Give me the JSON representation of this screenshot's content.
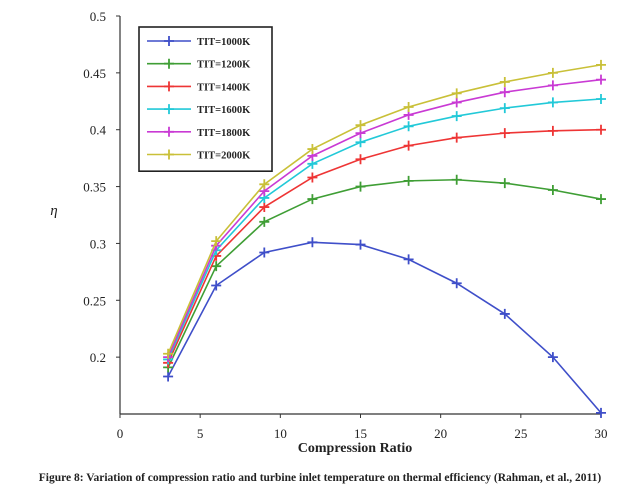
{
  "chart_data": {
    "type": "line",
    "title": "",
    "xlabel": "Compression Ratio",
    "ylabel": "η",
    "xlim": [
      0,
      30
    ],
    "ylim": [
      0.15,
      0.5
    ],
    "xticks": [
      0,
      5,
      10,
      15,
      20,
      25,
      30
    ],
    "yticks": [
      0.2,
      0.25,
      0.3,
      0.35,
      0.4,
      0.45,
      0.5
    ],
    "ytick_labels": [
      "0.2",
      "0.25",
      "0.3",
      "0.35",
      "0.4",
      "0.45",
      "0.5"
    ],
    "grid": false,
    "legend_position": "top-left",
    "x": [
      3,
      6,
      9,
      12,
      15,
      18,
      21,
      24,
      27,
      30
    ],
    "series": [
      {
        "name": "TIT=1000K",
        "color": "#3f4fc9",
        "values": [
          0.183,
          0.263,
          0.292,
          0.301,
          0.299,
          0.286,
          0.265,
          0.238,
          0.2,
          0.151
        ]
      },
      {
        "name": "TIT=1200K",
        "color": "#3f9e35",
        "values": [
          0.191,
          0.28,
          0.319,
          0.339,
          0.35,
          0.355,
          0.356,
          0.353,
          0.347,
          0.339
        ]
      },
      {
        "name": "TIT=1400K",
        "color": "#ee3535",
        "values": [
          0.195,
          0.289,
          0.332,
          0.358,
          0.374,
          0.386,
          0.393,
          0.397,
          0.399,
          0.4
        ]
      },
      {
        "name": "TIT=1600K",
        "color": "#22c9d8",
        "values": [
          0.198,
          0.294,
          0.34,
          0.37,
          0.389,
          0.403,
          0.412,
          0.419,
          0.424,
          0.427
        ]
      },
      {
        "name": "TIT=1800K",
        "color": "#c93ad4",
        "values": [
          0.2,
          0.298,
          0.346,
          0.377,
          0.397,
          0.413,
          0.424,
          0.433,
          0.439,
          0.444
        ]
      },
      {
        "name": "TIT=2000K",
        "color": "#c9c038",
        "values": [
          0.203,
          0.302,
          0.352,
          0.383,
          0.404,
          0.42,
          0.432,
          0.442,
          0.45,
          0.457
        ]
      }
    ]
  },
  "caption": "Figure 8: Variation of compression ratio and turbine inlet temperature on thermal efficiency (Rahman, et al., 2011)"
}
